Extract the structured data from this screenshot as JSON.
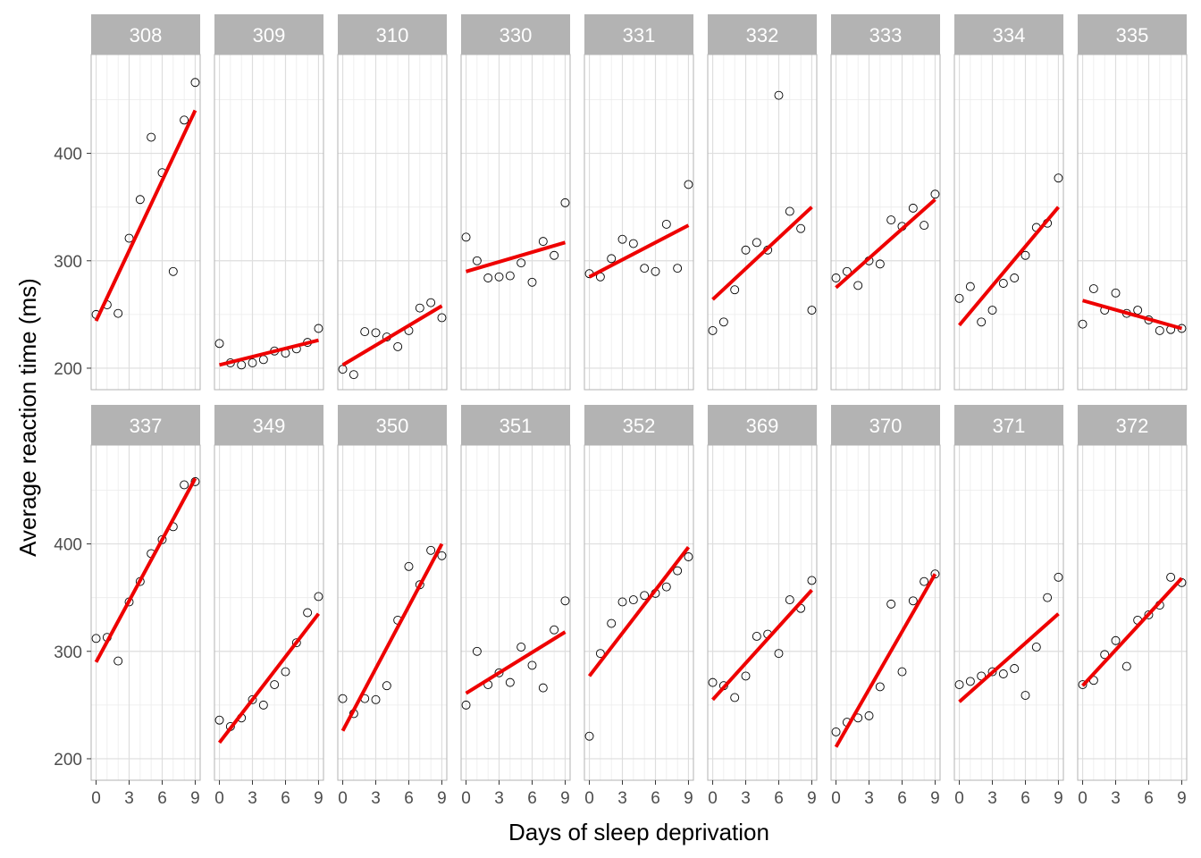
{
  "chart_data": {
    "type": "scatter",
    "title": "",
    "xlabel": "Days of sleep deprivation",
    "ylabel": "Average reaction time (ms)",
    "xlim": [
      -0.45,
      9.45
    ],
    "ylim": [
      180,
      492
    ],
    "x_ticks": [
      "0",
      "3",
      "6",
      "9"
    ],
    "y_ticks": [
      "200",
      "300",
      "400"
    ],
    "facet_rows": 2,
    "facet_cols": 9,
    "fit_line_color": "#ee0000",
    "point_color": "#000000",
    "strip_color": "#b3b3b3",
    "x": [
      0,
      1,
      2,
      3,
      4,
      5,
      6,
      7,
      8,
      9
    ],
    "panels": [
      {
        "id": "308",
        "y": [
          250,
          259,
          251,
          321,
          357,
          415,
          382,
          290,
          431,
          466
        ],
        "fit": [
          244,
          440
        ]
      },
      {
        "id": "309",
        "y": [
          223,
          205,
          203,
          205,
          208,
          216,
          214,
          218,
          224,
          237
        ],
        "fit": [
          203,
          226
        ]
      },
      {
        "id": "310",
        "y": [
          199,
          194,
          234,
          233,
          229,
          220,
          235,
          256,
          261,
          247
        ],
        "fit": [
          203,
          258
        ]
      },
      {
        "id": "330",
        "y": [
          322,
          300,
          284,
          285,
          286,
          298,
          280,
          318,
          305,
          354
        ],
        "fit": [
          290,
          317
        ]
      },
      {
        "id": "331",
        "y": [
          288,
          285,
          302,
          320,
          316,
          293,
          290,
          334,
          293,
          371
        ],
        "fit": [
          285,
          333
        ]
      },
      {
        "id": "332",
        "y": [
          235,
          243,
          273,
          310,
          317,
          310,
          454,
          346,
          330,
          254
        ],
        "fit": [
          264,
          350
        ]
      },
      {
        "id": "333",
        "y": [
          284,
          290,
          277,
          300,
          297,
          338,
          332,
          349,
          333,
          362
        ],
        "fit": [
          275,
          357
        ]
      },
      {
        "id": "334",
        "y": [
          265,
          276,
          243,
          254,
          279,
          284,
          305,
          331,
          335,
          377
        ],
        "fit": [
          240,
          350
        ]
      },
      {
        "id": "335",
        "y": [
          241,
          274,
          254,
          270,
          251,
          254,
          245,
          235,
          236,
          237
        ],
        "fit": [
          263,
          237
        ]
      },
      {
        "id": "337",
        "y": [
          312,
          313,
          291,
          346,
          365,
          391,
          404,
          416,
          455,
          458
        ],
        "fit": [
          290,
          461
        ]
      },
      {
        "id": "349",
        "y": [
          236,
          230,
          238,
          255,
          250,
          269,
          281,
          308,
          336,
          351
        ],
        "fit": [
          215,
          335
        ]
      },
      {
        "id": "350",
        "y": [
          256,
          242,
          256,
          255,
          268,
          329,
          379,
          362,
          394,
          389
        ],
        "fit": [
          226,
          400
        ]
      },
      {
        "id": "351",
        "y": [
          250,
          300,
          269,
          280,
          271,
          304,
          287,
          266,
          320,
          347
        ],
        "fit": [
          261,
          318
        ]
      },
      {
        "id": "352",
        "y": [
          221,
          298,
          326,
          346,
          348,
          352,
          354,
          360,
          375,
          388
        ],
        "fit": [
          277,
          397
        ]
      },
      {
        "id": "369",
        "y": [
          271,
          268,
          257,
          277,
          314,
          316,
          298,
          348,
          340,
          366
        ],
        "fit": [
          255,
          357
        ]
      },
      {
        "id": "370",
        "y": [
          225,
          234,
          238,
          240,
          267,
          344,
          281,
          347,
          365,
          372
        ],
        "fit": [
          211,
          372
        ]
      },
      {
        "id": "371",
        "y": [
          269,
          272,
          277,
          281,
          279,
          284,
          259,
          304,
          350,
          369
        ],
        "fit": [
          253,
          335
        ]
      },
      {
        "id": "372",
        "y": [
          269,
          273,
          297,
          310,
          286,
          329,
          334,
          343,
          369,
          364
        ],
        "fit": [
          268,
          368
        ]
      }
    ]
  }
}
